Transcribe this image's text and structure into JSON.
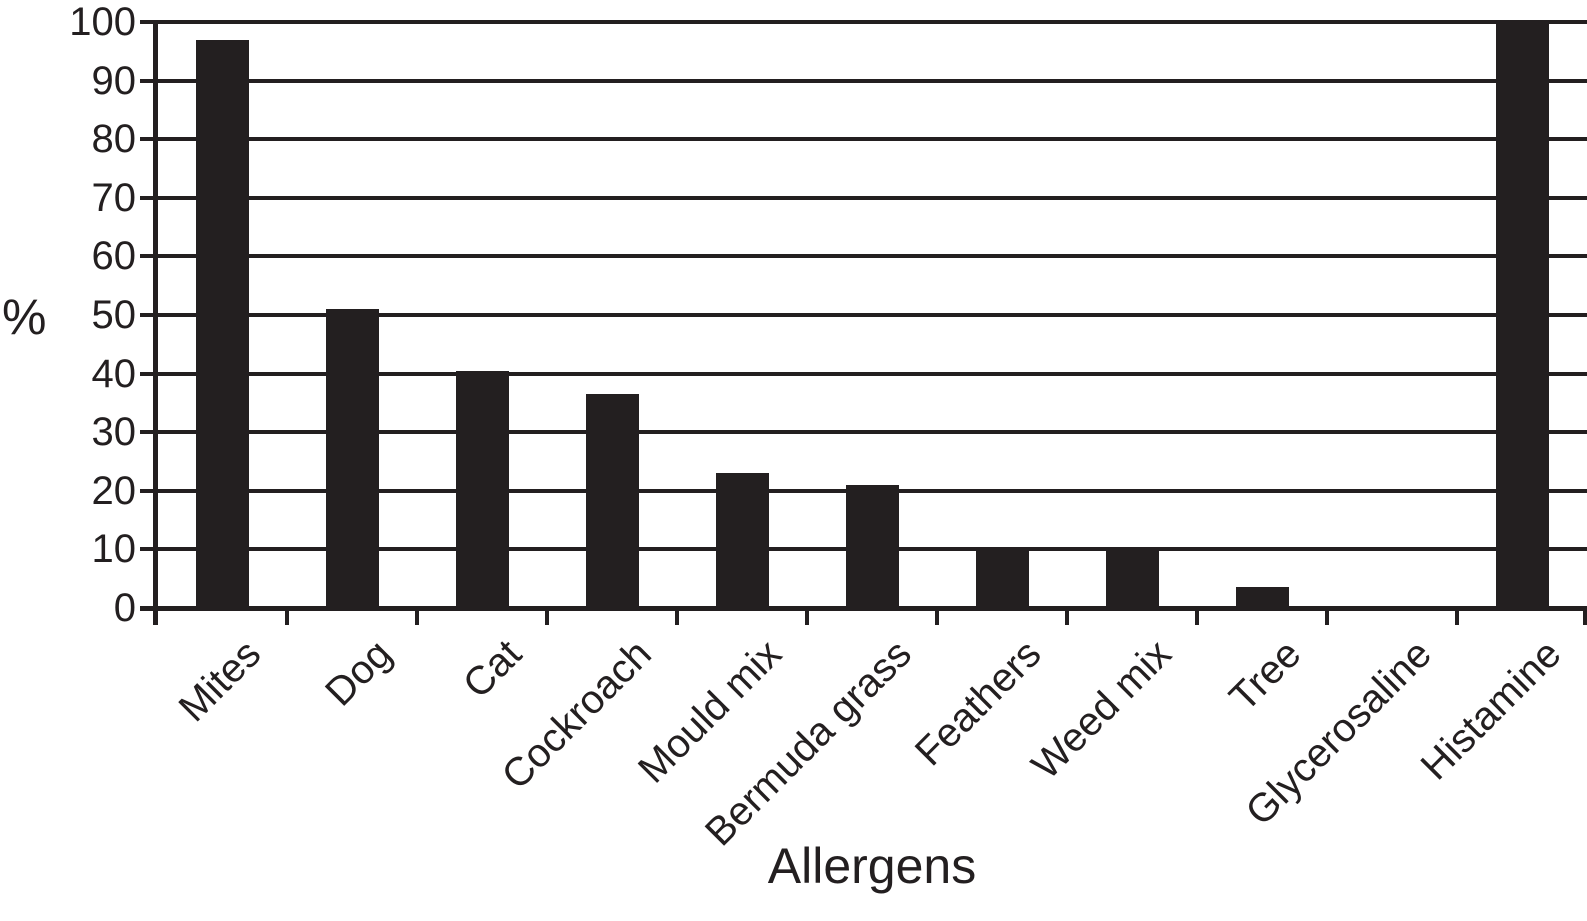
{
  "chart_data": {
    "type": "bar",
    "title": "",
    "xlabel": "Allergens",
    "ylabel": "%",
    "categories": [
      "Mites",
      "Dog",
      "Cat",
      "Cockroach",
      "Mould mix",
      "Bermuda grass",
      "Feathers",
      "Weed mix",
      "Tree",
      "Glycerosaline",
      "Histamine"
    ],
    "values": [
      97,
      51,
      40.5,
      36.5,
      23,
      21,
      10,
      10,
      3.5,
      0,
      100
    ],
    "ylim": [
      0,
      100
    ],
    "ytick_step": 10,
    "yticks": [
      100,
      90,
      80,
      70,
      60,
      50,
      40,
      30,
      20,
      10,
      0
    ],
    "grid": "horizontal",
    "legend_position": "none",
    "bar_color": "#231f20",
    "background_color": "#ffffff",
    "x_labels_rotation_deg": -45
  }
}
